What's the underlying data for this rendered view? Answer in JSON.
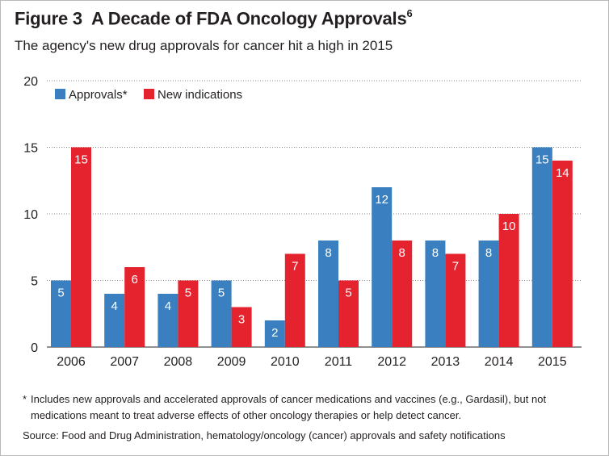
{
  "figure_label": "Figure 3",
  "title": "A Decade of FDA Oncology Approvals",
  "title_superscript": "6",
  "subtitle": "The agency's new drug approvals for cancer hit a high in 2015",
  "footnote_marker": "*",
  "footnote": "Includes new approvals and accelerated approvals of cancer medications and vaccines (e.g., Gardasil), but not medications meant to treat adverse effects of other oncology therapies or help detect cancer.",
  "source": "Source: Food and Drug Administration, hematology/oncology (cancer) approvals and safety notifications",
  "chart_data": {
    "type": "bar",
    "categories": [
      "2006",
      "2007",
      "2008",
      "2009",
      "2010",
      "2011",
      "2012",
      "2013",
      "2014",
      "2015"
    ],
    "series": [
      {
        "name": "Approvals*",
        "color": "#3a7fbf",
        "values": [
          5,
          4,
          4,
          5,
          2,
          8,
          12,
          8,
          8,
          15
        ]
      },
      {
        "name": "New indications",
        "color": "#e5232e",
        "values": [
          15,
          6,
          5,
          3,
          7,
          5,
          8,
          7,
          10,
          14
        ]
      }
    ],
    "title": "A Decade of FDA Oncology Approvals",
    "xlabel": "",
    "ylabel": "",
    "ylim": [
      0,
      20
    ],
    "yticks": [
      0,
      5,
      10,
      15,
      20
    ],
    "grid": true,
    "legend_position": "top-left"
  }
}
